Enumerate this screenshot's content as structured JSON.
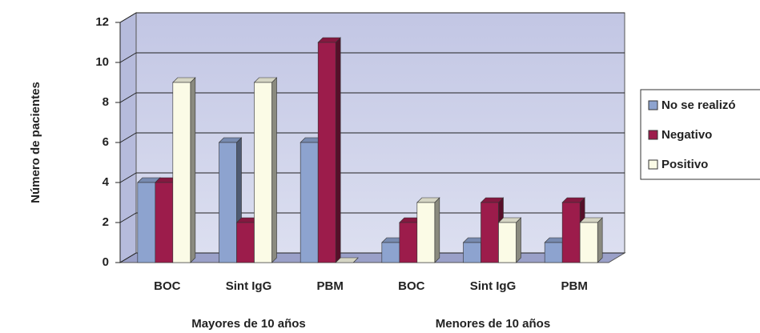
{
  "chart_data": {
    "type": "bar3d",
    "y_label": "Número de pacientes",
    "categories": [
      "BOC",
      "Sint IgG",
      "PBM",
      "BOC",
      "Sint IgG",
      "PBM"
    ],
    "groups": [
      "Mayores de 10 años",
      "Menores de 10 años"
    ],
    "series": [
      {
        "name": "No se realizó",
        "color": "#8da3cf",
        "values": [
          4,
          6,
          6,
          1,
          1,
          1
        ]
      },
      {
        "name": "Negativo",
        "color": "#9c1c4b",
        "values": [
          4,
          2,
          11,
          2,
          3,
          3
        ]
      },
      {
        "name": "Positivo",
        "color": "#fbfbe6",
        "values": [
          9,
          9,
          0,
          3,
          2,
          2
        ]
      }
    ],
    "ylim": [
      0,
      12
    ],
    "yticks": [
      0,
      2,
      4,
      6,
      8,
      10,
      12
    ],
    "grid": true,
    "legend": "right"
  }
}
